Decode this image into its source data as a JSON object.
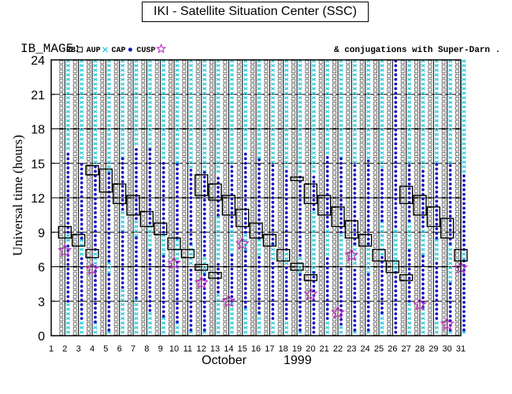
{
  "header": {
    "title": "IKI - Satellite Situation Center (SSC)"
  },
  "chart_data": {
    "type": "scatter",
    "panel_label": "IB_MAG5:",
    "region_legend": [
      {
        "code": "RB",
        "marker": "open-square",
        "color": "#000000"
      },
      {
        "code": "AUP",
        "marker": "x-cross",
        "color": "#28c8d8"
      },
      {
        "code": "CAP",
        "marker": "filled-dot",
        "color": "#1414c8"
      },
      {
        "code": "CUSP",
        "marker": "open-star",
        "color": "#c030c0"
      }
    ],
    "conjugation_note": "& conjugations with Super-Darn .",
    "ylabel": "Universal time (hours)",
    "xlabel_month": "October",
    "xlabel_year": "1999",
    "x_categories": [
      1,
      2,
      3,
      4,
      5,
      6,
      7,
      8,
      9,
      10,
      11,
      12,
      13,
      14,
      15,
      16,
      17,
      18,
      19,
      20,
      21,
      22,
      23,
      24,
      25,
      26,
      27,
      28,
      29,
      30,
      31
    ],
    "ylim": [
      0,
      24
    ],
    "yticks": [
      0,
      3,
      6,
      9,
      12,
      15,
      18,
      21,
      24
    ],
    "colors": {
      "rb": "#555555",
      "aup": "#28c8d8",
      "cap": "#1414c8",
      "cusp": "#c030c0",
      "grid": "#000000"
    },
    "cap_intervals": [
      {
        "day": 2,
        "low": [
          3.0,
          8.0
        ],
        "high": [
          9.0,
          16.0
        ]
      },
      {
        "day": 3,
        "low": [
          1.5,
          6.8
        ],
        "high": [
          8.5,
          15.2
        ]
      },
      {
        "day": 4,
        "low": [
          1.2,
          6.0
        ],
        "high": [
          7.5,
          14.8
        ]
      },
      {
        "day": 5,
        "low": [
          0.5,
          5.5
        ],
        "high": [
          6.5,
          14.2
        ]
      },
      {
        "day": 6,
        "low": [
          4.2,
          9.0
        ],
        "high": [
          11.0,
          15.5
        ]
      },
      {
        "day": 7,
        "low": [
          3.3,
          8.5
        ],
        "high": [
          10.2,
          16.5
        ]
      },
      {
        "day": 8,
        "low": [
          2.2,
          7.5
        ],
        "high": [
          9.8,
          16.2
        ]
      },
      {
        "day": 9,
        "low": [
          1.7,
          7.0
        ],
        "high": [
          9.0,
          15.3
        ]
      },
      {
        "day": 10,
        "low": [
          1.2,
          6.5
        ],
        "high": [
          8.5,
          15.0
        ]
      },
      {
        "day": 11,
        "low": [
          0.5,
          6.0
        ],
        "high": [
          8.0,
          14.5
        ]
      },
      {
        "day": 12,
        "low": [
          0.5,
          5.5
        ],
        "high": [
          7.0,
          14.2
        ]
      },
      {
        "day": 13,
        "low": [
          3.8,
          6.5
        ],
        "high": [
          10.5,
          14.0
        ]
      },
      {
        "day": 14,
        "low": [
          3.0,
          7.0
        ],
        "high": [
          9.5,
          15.0
        ]
      },
      {
        "day": 15,
        "low": [
          2.5,
          7.5
        ],
        "high": [
          9.0,
          16.0
        ]
      },
      {
        "day": 16,
        "low": [
          2.0,
          7.0
        ],
        "high": [
          8.5,
          15.5
        ]
      },
      {
        "day": 17,
        "low": [
          1.5,
          6.5
        ],
        "high": [
          8.0,
          15.0
        ]
      },
      {
        "day": 18,
        "low": [
          1.5,
          6.0
        ],
        "high": [
          7.5,
          14.5
        ]
      },
      {
        "day": 19,
        "low": [
          0.5,
          5.5
        ],
        "high": [
          7.0,
          14.0
        ]
      },
      {
        "day": 20,
        "low": [
          0.3,
          5.5
        ],
        "high": [
          11.0,
          14.0
        ]
      },
      {
        "day": 21,
        "low": [
          1.5,
          6.8
        ],
        "high": [
          9.5,
          15.8
        ]
      },
      {
        "day": 22,
        "low": [
          1.0,
          6.0
        ],
        "high": [
          9.0,
          15.5
        ]
      },
      {
        "day": 23,
        "low": [
          0.5,
          6.0
        ],
        "high": [
          8.0,
          15.0
        ]
      },
      {
        "day": 24,
        "low": [
          0.5,
          5.5
        ],
        "high": [
          8.0,
          15.5
        ]
      },
      {
        "day": 25,
        "low": [
          2.0,
          7.0
        ],
        "high": [
          10.0,
          14.5
        ]
      },
      {
        "day": 26,
        "low": [
          0.3,
          5.5
        ],
        "high": [
          9.5,
          24.0
        ]
      },
      {
        "day": 27,
        "low": [
          3.0,
          7.5
        ],
        "high": [
          10.0,
          15.0
        ]
      },
      {
        "day": 28,
        "low": [
          2.5,
          7.0
        ],
        "high": [
          9.5,
          14.5
        ]
      },
      {
        "day": 29,
        "low": [
          1.5,
          6.5
        ],
        "high": [
          8.5,
          15.0
        ]
      },
      {
        "day": 30,
        "low": [
          0.5,
          4.5
        ],
        "high": [
          8.0,
          14.8
        ]
      },
      {
        "day": 31,
        "low": [
          0.5,
          6.5
        ],
        "high": [
          7.5,
          14.0
        ]
      }
    ],
    "cusp_events": [
      {
        "day": 2,
        "ut": 7.4
      },
      {
        "day": 4,
        "ut": 5.8
      },
      {
        "day": 10,
        "ut": 6.3
      },
      {
        "day": 12,
        "ut": 4.6
      },
      {
        "day": 14,
        "ut": 3.0
      },
      {
        "day": 15,
        "ut": 8.0
      },
      {
        "day": 20,
        "ut": 3.6
      },
      {
        "day": 22,
        "ut": 2.0
      },
      {
        "day": 23,
        "ut": 7.0
      },
      {
        "day": 28,
        "ut": 2.7
      },
      {
        "day": 30,
        "ut": 1.0
      },
      {
        "day": 31,
        "ut": 5.9
      }
    ],
    "superdarn_conjugations": [
      {
        "day": 2,
        "start": 8.5,
        "end": 9.5
      },
      {
        "day": 3,
        "start": 7.8,
        "end": 8.8
      },
      {
        "day": 4,
        "start": 6.8,
        "end": 7.5
      },
      {
        "day": 4,
        "start": 14.0,
        "end": 14.8
      },
      {
        "day": 5,
        "start": 12.5,
        "end": 14.5
      },
      {
        "day": 6,
        "start": 11.5,
        "end": 13.2
      },
      {
        "day": 7,
        "start": 10.5,
        "end": 12.2
      },
      {
        "day": 8,
        "start": 9.5,
        "end": 10.8
      },
      {
        "day": 9,
        "start": 8.8,
        "end": 9.8
      },
      {
        "day": 10,
        "start": 7.5,
        "end": 8.5
      },
      {
        "day": 11,
        "start": 6.8,
        "end": 7.5
      },
      {
        "day": 12,
        "start": 5.7,
        "end": 6.2
      },
      {
        "day": 12,
        "start": 12.2,
        "end": 14.0
      },
      {
        "day": 13,
        "start": 5.0,
        "end": 5.5
      },
      {
        "day": 13,
        "start": 11.8,
        "end": 13.2
      },
      {
        "day": 14,
        "start": 10.5,
        "end": 12.2
      },
      {
        "day": 15,
        "start": 9.5,
        "end": 11.0
      },
      {
        "day": 16,
        "start": 8.5,
        "end": 9.8
      },
      {
        "day": 17,
        "start": 7.8,
        "end": 8.8
      },
      {
        "day": 18,
        "start": 6.5,
        "end": 7.5
      },
      {
        "day": 19,
        "start": 5.7,
        "end": 6.3
      },
      {
        "day": 19,
        "start": 13.5,
        "end": 13.8
      },
      {
        "day": 20,
        "start": 4.8,
        "end": 5.3
      },
      {
        "day": 20,
        "start": 11.5,
        "end": 13.2
      },
      {
        "day": 21,
        "start": 10.5,
        "end": 12.2
      },
      {
        "day": 22,
        "start": 9.5,
        "end": 11.2
      },
      {
        "day": 23,
        "start": 8.5,
        "end": 10.0
      },
      {
        "day": 24,
        "start": 7.8,
        "end": 8.8
      },
      {
        "day": 25,
        "start": 6.5,
        "end": 7.5
      },
      {
        "day": 26,
        "start": 5.5,
        "end": 6.5
      },
      {
        "day": 27,
        "start": 4.8,
        "end": 5.3
      },
      {
        "day": 27,
        "start": 11.5,
        "end": 13.0
      },
      {
        "day": 28,
        "start": 10.5,
        "end": 12.2
      },
      {
        "day": 29,
        "start": 9.5,
        "end": 11.2
      },
      {
        "day": 30,
        "start": 8.5,
        "end": 10.2
      },
      {
        "day": 31,
        "start": 6.5,
        "end": 7.5
      }
    ]
  }
}
